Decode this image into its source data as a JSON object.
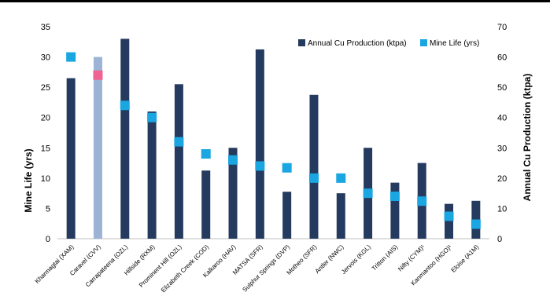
{
  "chart_data": {
    "type": "bar",
    "categories": [
      "Kharmagtai (XAM)",
      "Caravel (CVV)",
      "Carrapateena (OZL)",
      "Hillside (RXM)",
      "Prominent Hill (OZL)",
      "Elizabeth Creek (COD)",
      "Kalkaroo (HAV)",
      "MATSA (SFR)",
      "Sulphur Springs (DVP)",
      "Motheo (SFR)",
      "Antler (NWC)",
      "Jervois (KGL)",
      "Tritton (AIS)",
      "Nifty (CYM)¹",
      "Kanmantoo (HGO)¹",
      "Eloise (A1M)"
    ],
    "series": [
      {
        "name": "Annual Cu Production (ktpa)",
        "type": "bar",
        "axis": "right",
        "color": "#243a5e",
        "highlight_color": "#9cb3d6",
        "highlight_index": 1,
        "values": [
          53,
          60,
          66,
          42,
          51,
          22.5,
          30,
          62.5,
          15.5,
          47.5,
          15,
          30,
          18.5,
          25,
          11.5,
          12.5
        ]
      },
      {
        "name": "Mine Life (yrs)",
        "type": "marker",
        "axis": "left",
        "color": "#1aa6e0",
        "highlight_color": "#f06292",
        "highlight_index": 1,
        "values": [
          30,
          27,
          22,
          20,
          16,
          14,
          13,
          12,
          11.7,
          10,
          10,
          7.5,
          7,
          6.2,
          3.7,
          2.4
        ]
      }
    ],
    "y_left": {
      "label": "Mine Life (yrs)",
      "min": 0,
      "max": 35,
      "ticks": [
        0,
        5,
        10,
        15,
        20,
        25,
        30,
        35
      ]
    },
    "y_right": {
      "label": "Annual Cu Production (ktpa)",
      "min": 0,
      "max": 70,
      "ticks": [
        0,
        10,
        20,
        30,
        40,
        50,
        60,
        70
      ]
    },
    "legend": {
      "placement": "top-right",
      "items": [
        {
          "label": "Annual Cu Production (ktpa)",
          "color": "#243a5e"
        },
        {
          "label": "Mine Life (yrs)",
          "color": "#1aa6e0"
        }
      ]
    },
    "grid": false
  }
}
